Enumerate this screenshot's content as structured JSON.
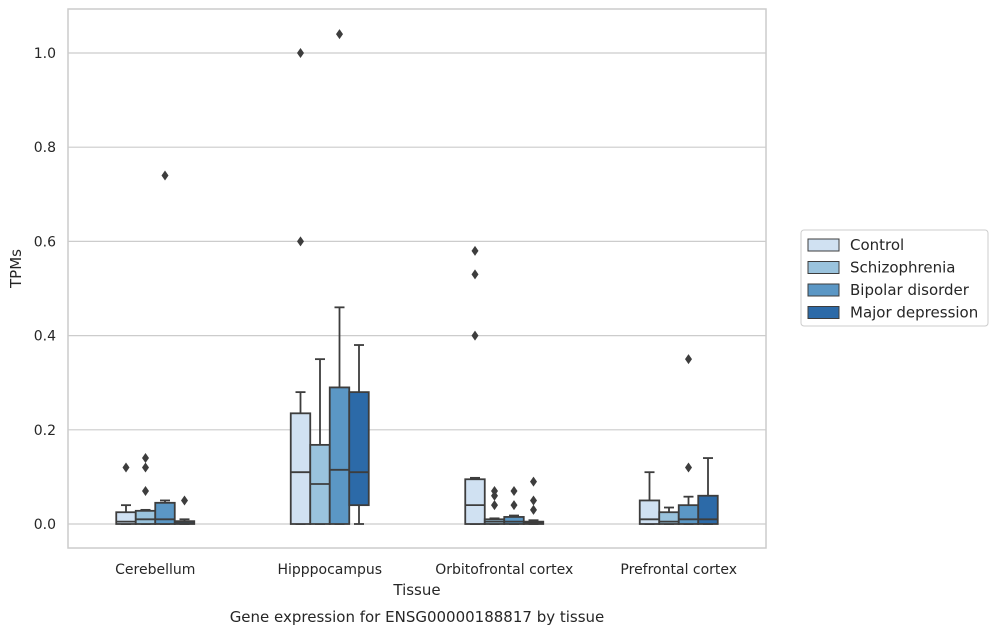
{
  "caption": "Gene expression for ENSG00000188817 by tissue",
  "chart_data": {
    "type": "box",
    "xlabel": "Tissue",
    "ylabel": "TPMs",
    "ylim": [
      -0.05,
      1.09
    ],
    "yticks": [
      0.0,
      0.2,
      0.4,
      0.6,
      0.8,
      1.0
    ],
    "ytick_labels": [
      "0.0",
      "0.2",
      "0.4",
      "0.6",
      "0.8",
      "1.0"
    ],
    "grid": "horizontal",
    "legend_position": "right",
    "categories": [
      "Cerebellum",
      "Hipppocampus",
      "Orbitofrontal cortex",
      "Prefrontal cortex"
    ],
    "series": [
      {
        "name": "Control",
        "color": "#d0e1f2",
        "boxes": [
          {
            "q1": 0.0,
            "median": 0.005,
            "q3": 0.025,
            "whisker_low": 0.0,
            "whisker_high": 0.04,
            "outliers": [
              0.12
            ]
          },
          {
            "q1": 0.0,
            "median": 0.11,
            "q3": 0.235,
            "whisker_low": 0.0,
            "whisker_high": 0.28,
            "outliers": [
              0.6,
              1.0
            ]
          },
          {
            "q1": 0.0,
            "median": 0.04,
            "q3": 0.095,
            "whisker_low": 0.0,
            "whisker_high": 0.098,
            "outliers": [
              0.4,
              0.53,
              0.58
            ]
          },
          {
            "q1": 0.0,
            "median": 0.01,
            "q3": 0.05,
            "whisker_low": 0.0,
            "whisker_high": 0.11,
            "outliers": []
          }
        ]
      },
      {
        "name": "Schizophrenia",
        "color": "#9ac3dd",
        "boxes": [
          {
            "q1": 0.0,
            "median": 0.01,
            "q3": 0.028,
            "whisker_low": 0.0,
            "whisker_high": 0.03,
            "outliers": [
              0.07,
              0.12,
              0.14
            ]
          },
          {
            "q1": 0.0,
            "median": 0.085,
            "q3": 0.168,
            "whisker_low": 0.0,
            "whisker_high": 0.35,
            "outliers": []
          },
          {
            "q1": 0.0,
            "median": 0.005,
            "q3": 0.01,
            "whisker_low": 0.0,
            "whisker_high": 0.012,
            "outliers": [
              0.04,
              0.06,
              0.07
            ]
          },
          {
            "q1": 0.0,
            "median": 0.005,
            "q3": 0.025,
            "whisker_low": 0.0,
            "whisker_high": 0.035,
            "outliers": []
          }
        ]
      },
      {
        "name": "Bipolar disorder",
        "color": "#5b97c5",
        "boxes": [
          {
            "q1": 0.0,
            "median": 0.01,
            "q3": 0.045,
            "whisker_low": 0.0,
            "whisker_high": 0.05,
            "outliers": [
              0.74
            ]
          },
          {
            "q1": 0.0,
            "median": 0.115,
            "q3": 0.29,
            "whisker_low": 0.0,
            "whisker_high": 0.46,
            "outliers": [
              1.04
            ]
          },
          {
            "q1": 0.0,
            "median": 0.005,
            "q3": 0.015,
            "whisker_low": 0.0,
            "whisker_high": 0.018,
            "outliers": [
              0.04,
              0.07
            ]
          },
          {
            "q1": 0.0,
            "median": 0.01,
            "q3": 0.04,
            "whisker_low": 0.0,
            "whisker_high": 0.058,
            "outliers": [
              0.12,
              0.35
            ]
          }
        ]
      },
      {
        "name": "Major depression",
        "color": "#2c6aa8",
        "boxes": [
          {
            "q1": 0.0,
            "median": 0.002,
            "q3": 0.006,
            "whisker_low": 0.0,
            "whisker_high": 0.01,
            "outliers": [
              0.05
            ]
          },
          {
            "q1": 0.04,
            "median": 0.11,
            "q3": 0.28,
            "whisker_low": 0.0,
            "whisker_high": 0.38,
            "outliers": []
          },
          {
            "q1": 0.0,
            "median": 0.002,
            "q3": 0.005,
            "whisker_low": 0.0,
            "whisker_high": 0.008,
            "outliers": [
              0.03,
              0.05,
              0.09
            ]
          },
          {
            "q1": 0.0,
            "median": 0.01,
            "q3": 0.06,
            "whisker_low": 0.0,
            "whisker_high": 0.14,
            "outliers": []
          }
        ]
      }
    ]
  }
}
